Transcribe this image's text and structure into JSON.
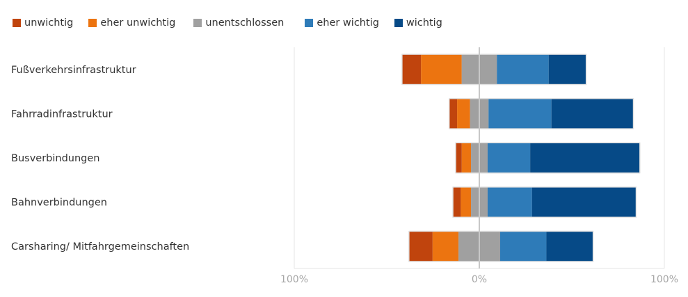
{
  "chart_data": {
    "type": "bar",
    "orientation": "horizontal",
    "stacked": "diverging",
    "categories": [
      "Fußverkehrsinfrastruktur",
      "Fahrradinfrastruktur",
      "Busverbindungen",
      "Bahnverbindungen",
      "Carsharing/ Mitfahrgemeinschaften"
    ],
    "series": [
      {
        "name": "unwichtig",
        "color": "#c0440d",
        "values": [
          10,
          4,
          3,
          4,
          12.5
        ]
      },
      {
        "name": "eher unwichtig",
        "color": "#ec7410",
        "values": [
          22,
          7,
          5,
          5.5,
          14
        ]
      },
      {
        "name": "unentschlossen",
        "color": "#a0a0a0",
        "values": [
          19,
          10,
          9,
          9,
          22.5
        ]
      },
      {
        "name": "eher wichtig",
        "color": "#2e7bb8",
        "values": [
          28,
          34,
          23,
          24,
          25
        ]
      },
      {
        "name": "wichtig",
        "color": "#064a87",
        "values": [
          20,
          44,
          59,
          56,
          25
        ]
      }
    ],
    "xlim": [
      -100,
      100
    ],
    "xticks": [
      "100%",
      "0%",
      "100%"
    ],
    "legend_position": "top-left",
    "grid": false
  }
}
